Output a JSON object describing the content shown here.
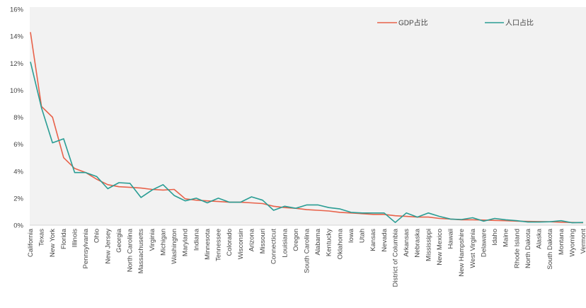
{
  "chart_data": {
    "type": "line",
    "title": "",
    "xlabel": "",
    "ylabel": "",
    "ylim": [
      0,
      16
    ],
    "y_ticks": [
      "0%",
      "2%",
      "4%",
      "6%",
      "8%",
      "10%",
      "12%",
      "14%",
      "16%"
    ],
    "grid": false,
    "legend": "top-right",
    "background": "#f2f2f2",
    "categories": [
      "California",
      "Texas",
      "New York",
      "Florida",
      "Illinois",
      "Pennsylvania",
      "Ohio",
      "New Jersey",
      "Georgia",
      "North Carolina",
      "Massachusetts",
      "Virginia",
      "Michigan",
      "Washington",
      "Maryland",
      "Indiana",
      "Minnesota",
      "Tennessee",
      "Colorado",
      "Wisconsin",
      "Arizona",
      "Missouri",
      "Connecticut",
      "Louisiana",
      "Oregon",
      "South Carolina",
      "Alabama",
      "Kentucky",
      "Oklahoma",
      "Iowa",
      "Utah",
      "Kansas",
      "Nevada",
      "District of Columbia",
      "Arkansas",
      "Nebraska",
      "Mississippi",
      "New Mexico",
      "Hawaii",
      "New Hampshire",
      "West Virginia",
      "Delaware",
      "Idaho",
      "Maine",
      "Rhode Island",
      "North Dakota",
      "Alaska",
      "South Dakota",
      "Montana",
      "Wyoming",
      "Vermont"
    ],
    "series": [
      {
        "name": "GDP占比",
        "color": "#e8624a",
        "values": [
          14.3,
          8.8,
          8.0,
          5.0,
          4.2,
          3.9,
          3.4,
          3.0,
          2.85,
          2.8,
          2.75,
          2.65,
          2.6,
          2.65,
          1.95,
          1.85,
          1.8,
          1.75,
          1.7,
          1.7,
          1.65,
          1.6,
          1.4,
          1.3,
          1.25,
          1.15,
          1.1,
          1.05,
          0.95,
          0.9,
          0.85,
          0.8,
          0.8,
          0.7,
          0.65,
          0.6,
          0.6,
          0.5,
          0.45,
          0.4,
          0.4,
          0.38,
          0.35,
          0.33,
          0.3,
          0.28,
          0.27,
          0.25,
          0.22,
          0.2,
          0.18
        ]
      },
      {
        "name": "人口占比",
        "color": "#2a9d94",
        "values": [
          12.1,
          8.7,
          6.1,
          6.4,
          3.9,
          3.9,
          3.6,
          2.7,
          3.15,
          3.1,
          2.05,
          2.6,
          3.0,
          2.2,
          1.8,
          2.0,
          1.65,
          2.0,
          1.7,
          1.7,
          2.1,
          1.85,
          1.1,
          1.4,
          1.25,
          1.5,
          1.5,
          1.3,
          1.2,
          0.95,
          0.9,
          0.9,
          0.9,
          0.2,
          0.9,
          0.6,
          0.9,
          0.65,
          0.45,
          0.42,
          0.55,
          0.3,
          0.5,
          0.4,
          0.33,
          0.23,
          0.23,
          0.25,
          0.33,
          0.18,
          0.2
        ]
      }
    ]
  }
}
